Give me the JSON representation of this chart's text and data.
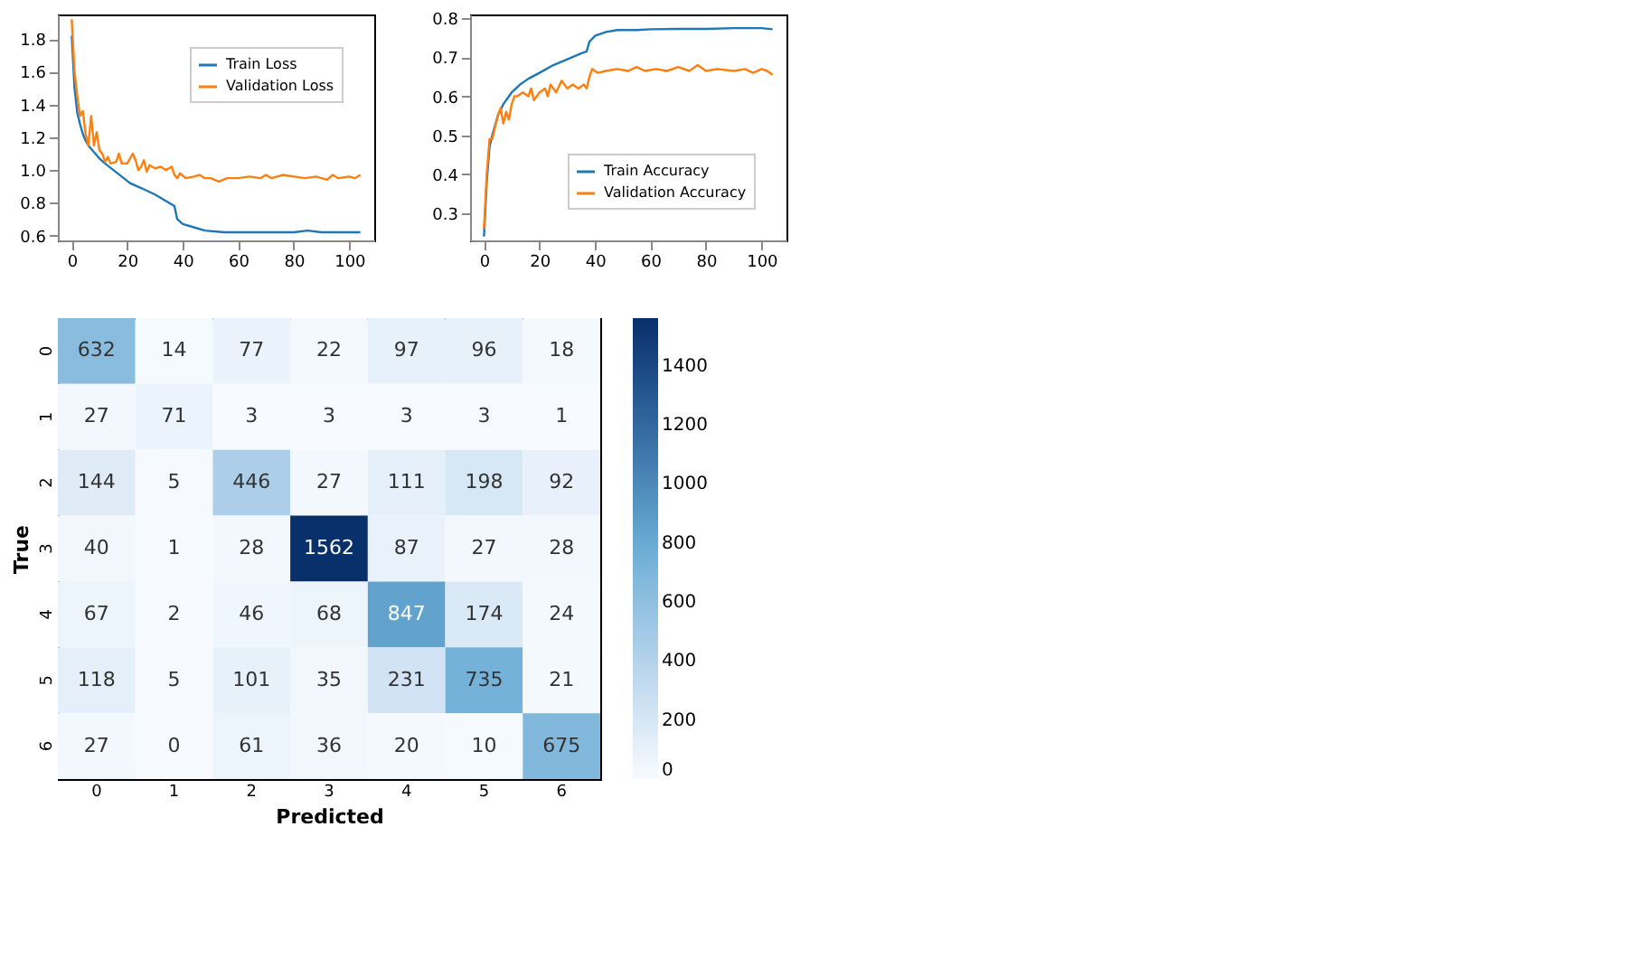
{
  "chart_data": [
    {
      "type": "line",
      "xlim": [
        -5,
        109
      ],
      "xticks": [
        0,
        20,
        40,
        60,
        80,
        100
      ],
      "ylim": [
        0.57,
        1.95
      ],
      "yticks": [
        0.6,
        0.8,
        {
          "value": 1,
          "label": "1.0"
        },
        1.2,
        1.4,
        1.6,
        1.8
      ],
      "grid": false,
      "legend": "top right",
      "line_style": "solid",
      "series": [
        {
          "name": "Train Loss",
          "color": "#1f77b4",
          "x": [
            0,
            1,
            2,
            3,
            4,
            5,
            6,
            8,
            10,
            12,
            15,
            18,
            21,
            25,
            30,
            34,
            37,
            38,
            40,
            44,
            48,
            55,
            60,
            70,
            80,
            85,
            90,
            100,
            104
          ],
          "values": [
            1.82,
            1.5,
            1.35,
            1.28,
            1.22,
            1.18,
            1.15,
            1.11,
            1.07,
            1.04,
            1.0,
            0.96,
            0.92,
            0.89,
            0.85,
            0.81,
            0.78,
            0.7,
            0.67,
            0.65,
            0.63,
            0.62,
            0.62,
            0.62,
            0.62,
            0.63,
            0.62,
            0.62,
            0.62
          ]
        },
        {
          "name": "Validation Loss",
          "color": "#ff7f0e",
          "x": [
            0,
            1,
            2,
            3,
            4,
            5,
            6,
            7,
            8,
            9,
            10,
            11,
            12,
            13,
            14,
            16,
            17,
            18,
            20,
            22,
            23,
            24,
            25,
            26,
            27,
            28,
            30,
            32,
            34,
            36,
            37,
            38,
            39,
            41,
            44,
            46,
            48,
            50,
            53,
            56,
            60,
            64,
            68,
            70,
            72,
            76,
            80,
            84,
            88,
            92,
            94,
            96,
            100,
            102,
            104
          ],
          "values": [
            1.92,
            1.6,
            1.45,
            1.33,
            1.36,
            1.22,
            1.15,
            1.33,
            1.15,
            1.23,
            1.12,
            1.1,
            1.05,
            1.08,
            1.04,
            1.05,
            1.1,
            1.04,
            1.04,
            1.1,
            1.06,
            1.0,
            1.02,
            1.06,
            0.99,
            1.03,
            1.01,
            1.02,
            1.0,
            1.02,
            0.97,
            0.95,
            0.98,
            0.95,
            0.96,
            0.97,
            0.95,
            0.95,
            0.93,
            0.95,
            0.95,
            0.96,
            0.95,
            0.97,
            0.95,
            0.97,
            0.96,
            0.95,
            0.96,
            0.94,
            0.97,
            0.95,
            0.96,
            0.95,
            0.97
          ]
        }
      ]
    },
    {
      "type": "line",
      "xlim": [
        -5,
        109
      ],
      "xticks": [
        0,
        20,
        40,
        60,
        80,
        100
      ],
      "ylim": [
        0.23,
        0.81
      ],
      "yticks": [
        0.3,
        0.4,
        0.5,
        0.6,
        0.7,
        0.8
      ],
      "grid": false,
      "legend": "bottom right",
      "line_style": "solid",
      "series": [
        {
          "name": "Train Accuracy",
          "color": "#1f77b4",
          "x": [
            0,
            1,
            2,
            3,
            5,
            7,
            10,
            13,
            16,
            20,
            25,
            30,
            35,
            37,
            38,
            40,
            44,
            48,
            55,
            60,
            70,
            80,
            90,
            100,
            104
          ],
          "values": [
            0.24,
            0.38,
            0.47,
            0.5,
            0.55,
            0.58,
            0.61,
            0.63,
            0.645,
            0.66,
            0.68,
            0.695,
            0.71,
            0.715,
            0.74,
            0.755,
            0.765,
            0.77,
            0.77,
            0.772,
            0.773,
            0.773,
            0.775,
            0.775,
            0.772
          ]
        },
        {
          "name": "Validation Accuracy",
          "color": "#ff7f0e",
          "x": [
            0,
            1,
            2,
            3,
            4,
            5,
            6,
            7,
            8,
            9,
            10,
            11,
            12,
            14,
            16,
            17,
            18,
            20,
            22,
            23,
            24,
            26,
            28,
            30,
            32,
            34,
            36,
            37,
            38,
            39,
            41,
            44,
            48,
            52,
            55,
            58,
            62,
            66,
            70,
            74,
            77,
            80,
            84,
            90,
            94,
            97,
            100,
            102,
            104
          ],
          "values": [
            0.26,
            0.4,
            0.49,
            0.49,
            0.52,
            0.55,
            0.57,
            0.53,
            0.56,
            0.54,
            0.58,
            0.6,
            0.6,
            0.61,
            0.6,
            0.62,
            0.59,
            0.61,
            0.62,
            0.6,
            0.63,
            0.61,
            0.64,
            0.62,
            0.63,
            0.62,
            0.63,
            0.62,
            0.65,
            0.67,
            0.66,
            0.665,
            0.67,
            0.665,
            0.675,
            0.665,
            0.67,
            0.665,
            0.675,
            0.665,
            0.68,
            0.665,
            0.67,
            0.665,
            0.67,
            0.66,
            0.67,
            0.665,
            0.655
          ]
        }
      ]
    },
    {
      "type": "heatmap",
      "xlabel": "Predicted",
      "ylabel": "True",
      "categories": [
        "0",
        "1",
        "2",
        "3",
        "4",
        "5",
        "6"
      ],
      "y_categories": [
        "0",
        "1",
        "2",
        "3",
        "4",
        "5",
        "6"
      ],
      "cells": [
        [
          632,
          14,
          77,
          22,
          97,
          96,
          18
        ],
        [
          27,
          71,
          3,
          3,
          3,
          3,
          1
        ],
        [
          144,
          5,
          446,
          27,
          111,
          198,
          92
        ],
        [
          40,
          1,
          28,
          1562,
          87,
          27,
          28
        ],
        [
          67,
          2,
          46,
          68,
          847,
          174,
          24
        ],
        [
          118,
          5,
          101,
          35,
          231,
          735,
          21
        ],
        [
          27,
          0,
          61,
          36,
          20,
          10,
          675
        ]
      ],
      "data_labels": true,
      "clim": [
        0,
        1562
      ],
      "cticks": [
        0,
        200,
        400,
        600,
        800,
        1000,
        1200,
        1400
      ]
    }
  ]
}
